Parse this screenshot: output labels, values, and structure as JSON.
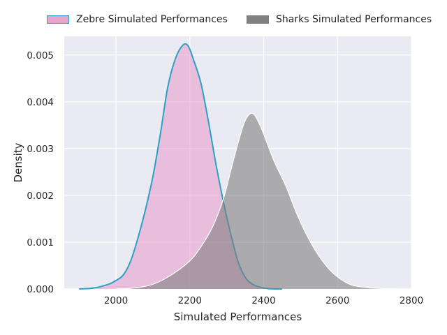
{
  "chart_data": {
    "type": "area",
    "title": "",
    "xlabel": "Simulated Performances",
    "ylabel": "Density",
    "xlim": [
      1860,
      2800
    ],
    "ylim": [
      0,
      0.0054
    ],
    "xticks": [
      "2000",
      "2200",
      "2400",
      "2600",
      "2800"
    ],
    "yticks": [
      "0.000",
      "0.001",
      "0.002",
      "0.003",
      "0.004",
      "0.005"
    ],
    "grid": true,
    "legend_placement": "top, outside, horizontal",
    "background_color": "#EAEAF2",
    "series": [
      {
        "name": "Zebre Simulated Performances",
        "fill_color": "#E8A6CF",
        "line_color": "#2AA1C7",
        "x": [
          1900,
          1940,
          1980,
          2000,
          2020,
          2040,
          2060,
          2080,
          2100,
          2120,
          2140,
          2160,
          2180,
          2195,
          2210,
          2230,
          2250,
          2270,
          2290,
          2310,
          2330,
          2350,
          2370,
          2390,
          2410,
          2430,
          2450
        ],
        "y": [
          0.0,
          2e-05,
          0.0001,
          0.00018,
          0.0003,
          0.0006,
          0.0011,
          0.0017,
          0.0024,
          0.0033,
          0.0043,
          0.0049,
          0.0052,
          0.0052,
          0.0049,
          0.0044,
          0.0036,
          0.0027,
          0.0019,
          0.0012,
          0.0006,
          0.00025,
          0.0001,
          4e-05,
          1e-05,
          0.0,
          0.0
        ]
      },
      {
        "name": "Sharks Simulated Performances",
        "fill_color": "#808080",
        "line_color": "#ffffff",
        "x": [
          2000,
          2050,
          2100,
          2150,
          2200,
          2230,
          2260,
          2290,
          2310,
          2330,
          2350,
          2370,
          2390,
          2410,
          2430,
          2460,
          2490,
          2520,
          2550,
          2580,
          2610,
          2640,
          2680,
          2720,
          2760
        ],
        "y": [
          0.0,
          2e-05,
          0.0001,
          0.0003,
          0.0006,
          0.0009,
          0.0013,
          0.0019,
          0.0025,
          0.0031,
          0.0036,
          0.00375,
          0.0035,
          0.0031,
          0.0027,
          0.0022,
          0.0016,
          0.0011,
          0.0007,
          0.0004,
          0.0002,
          8e-05,
          3e-05,
          1e-05,
          0.0
        ]
      }
    ]
  }
}
